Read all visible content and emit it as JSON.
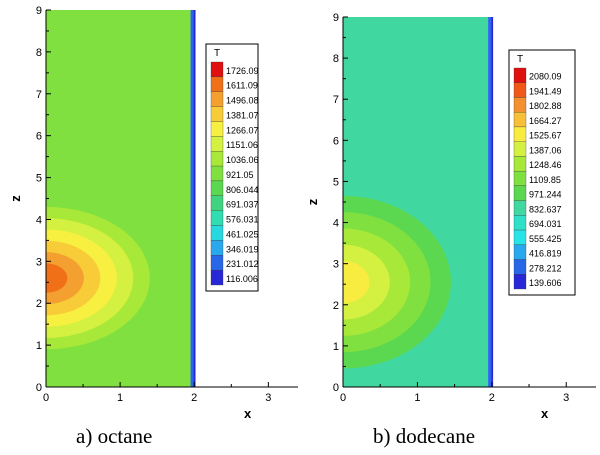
{
  "chart_data": [
    {
      "type": "heatmap",
      "caption": "a) octane",
      "xlabel": "x",
      "ylabel": "z",
      "xlim": [
        0,
        3.4
      ],
      "ylim": [
        0,
        9
      ],
      "x_ticks": [
        "0",
        "1",
        "2",
        "3"
      ],
      "y_ticks": [
        "0",
        "1",
        "2",
        "3",
        "4",
        "5",
        "6",
        "7",
        "8",
        "9"
      ],
      "legend_title": "T",
      "legend_position": "right",
      "legend_levels": [
        "1726.09",
        "1611.09",
        "1496.08",
        "1381.07",
        "1266.07",
        "1151.06",
        "1036.06",
        "921.05",
        "806.044",
        "691.037",
        "576.031",
        "461.025",
        "346.019",
        "231.012",
        "116.006"
      ],
      "legend_colors": [
        "#e01010",
        "#f07018",
        "#f4a030",
        "#f8cc38",
        "#f8f040",
        "#d4f040",
        "#a8e838",
        "#80e040",
        "#5cd850",
        "#40d480",
        "#30dcb0",
        "#28d8e0",
        "#2aa8ee",
        "#2868e8",
        "#2828d8"
      ],
      "background_T": 921.05,
      "wall_x": 1.95,
      "hot_zone": {
        "x_extent": 1.4,
        "z_center": 2.6,
        "z_half_height": 1.7
      },
      "contour_levels_drawn": [
        "#a8e838",
        "#d4f040",
        "#f8f040",
        "#f8cc38",
        "#f4a030",
        "#f07018"
      ]
    },
    {
      "type": "heatmap",
      "caption": "b) dodecane",
      "xlabel": "x",
      "ylabel": "z",
      "xlim": [
        0,
        3.4
      ],
      "ylim": [
        0,
        9
      ],
      "x_ticks": [
        "0",
        "1",
        "2",
        "3"
      ],
      "y_ticks": [
        "0",
        "1",
        "2",
        "3",
        "4",
        "5",
        "6",
        "7",
        "8",
        "9"
      ],
      "legend_title": "T",
      "legend_position": "right",
      "legend_levels": [
        "2080.09",
        "1941.49",
        "1802.88",
        "1664.27",
        "1525.67",
        "1387.06",
        "1248.46",
        "1109.85",
        "971.244",
        "832.637",
        "694.031",
        "555.425",
        "416.819",
        "278.212",
        "139.606"
      ],
      "legend_colors": [
        "#e01010",
        "#f05818",
        "#f49030",
        "#f8c038",
        "#f8ec40",
        "#d4f040",
        "#a8e838",
        "#80e040",
        "#5cd850",
        "#40d8a0",
        "#30e0c8",
        "#28e4e8",
        "#2aa8ee",
        "#2868e8",
        "#2828d8"
      ],
      "background_T": 832.637,
      "wall_x": 1.95,
      "hot_zone": {
        "x_extent": 1.45,
        "z_center": 2.55,
        "z_half_height": 2.1
      },
      "contour_levels_drawn": [
        "#5cd850",
        "#80e040",
        "#a8e838",
        "#d4f040",
        "#f8ec40"
      ]
    }
  ]
}
